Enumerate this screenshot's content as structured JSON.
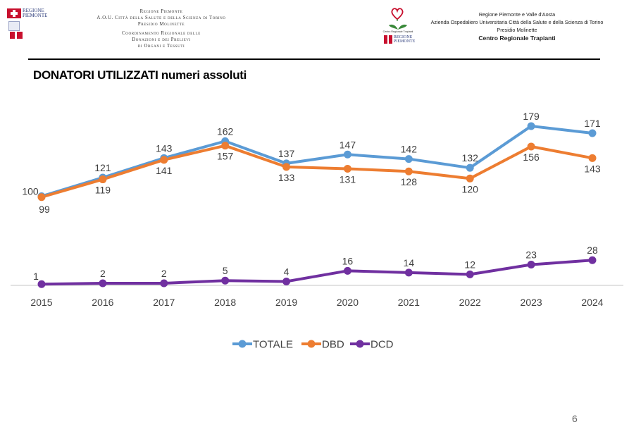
{
  "header": {
    "left_logo_text": [
      "REGIONE",
      "PIEMONTE"
    ],
    "left_lines": [
      "Regione Piemonte",
      "A.O.U. Città della Salute e della Scienza di Torino",
      "Presidio Molinette",
      "Coordinamento Regionale delle",
      "Donazioni e dei Prelievi",
      "di Organi e Tessuti"
    ],
    "right_logo_small": "Centro Regionale Trapianti",
    "right_logo_text": [
      "REGIONE",
      "PIEMONTE"
    ],
    "right_lines": [
      "Regione Piemonte e Valle d'Aosta",
      "Azienda Ospedaliero Universitaria Città della Salute e della Scienza di Torino",
      "Presidio Molinette",
      "Centro Regionale Trapianti"
    ]
  },
  "page_title": "DONATORI UTILIZZATI numeri assoluti",
  "page_number": "6",
  "colors": {
    "totale": "#5b9bd5",
    "dbd": "#ed7d31",
    "dcd": "#7030a0",
    "axis": "#d9d9d9"
  },
  "chart_data": {
    "type": "line",
    "title": "DONATORI UTILIZZATI numeri assoluti",
    "xlabel": "",
    "ylabel": "",
    "x": [
      "2015",
      "2016",
      "2017",
      "2018",
      "2019",
      "2020",
      "2021",
      "2022",
      "2023",
      "2024"
    ],
    "ylim": [
      0,
      200
    ],
    "grid": false,
    "legend_position": "bottom",
    "series": [
      {
        "name": "TOTALE",
        "color": "#5b9bd5",
        "values": [
          100,
          121,
          143,
          162,
          137,
          147,
          142,
          132,
          179,
          171
        ],
        "labels_position": "above"
      },
      {
        "name": "DBD",
        "color": "#ed7d31",
        "values": [
          99,
          119,
          141,
          157,
          133,
          131,
          128,
          120,
          156,
          143
        ],
        "labels_position": "below"
      },
      {
        "name": "DCD",
        "color": "#7030a0",
        "values": [
          1,
          2,
          2,
          5,
          4,
          16,
          14,
          12,
          23,
          28
        ],
        "labels_position": "above"
      }
    ]
  }
}
